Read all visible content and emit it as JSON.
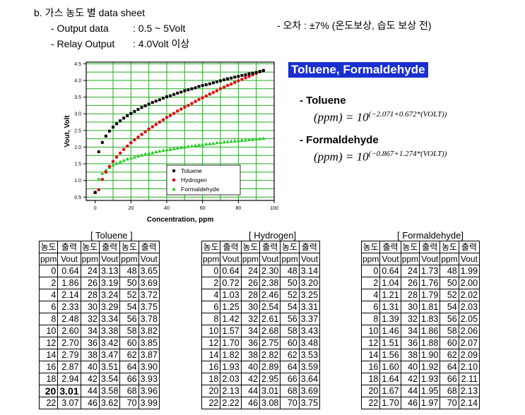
{
  "header": {
    "section_title": "b. 가스 농도 별 data sheet",
    "output_label": "- Output data",
    "output_value": ": 0.5 ~ 5Volt",
    "relay_label": "- Relay Output",
    "relay_value": ": 4.0Volt 이상",
    "error_note": "- 오차 : ±7% (온도보상, 습도 보상 전)"
  },
  "equations": {
    "title": "Toluene, Formaldehyde",
    "toluene_label": "- Toluene",
    "toluene_lhs": "(ppm) = 10",
    "toluene_exp": "(−2.071+0.672*(VOLT))",
    "formaldehyde_label": "- Formaldehyde",
    "formaldehyde_lhs": "(ppm) = 10",
    "formaldehyde_exp": "(−0.867+1.274*(VOLT))"
  },
  "chart_data": {
    "type": "scatter",
    "xlabel": "Concentration, ppm",
    "ylabel": "Vout, Volt",
    "xlim": [
      -5,
      100
    ],
    "ylim": [
      0.4,
      4.55
    ],
    "xticks": [
      0,
      20,
      40,
      60,
      80,
      100
    ],
    "yticks": [
      0.5,
      1.0,
      1.5,
      2.0,
      2.5,
      3.0,
      3.5,
      4.0,
      4.5
    ],
    "grid": true,
    "legend": "lower-right",
    "series": [
      {
        "name": "Toluene",
        "color": "#000000",
        "marker": "square",
        "x": [
          0,
          2,
          4,
          6,
          8,
          10,
          12,
          14,
          16,
          18,
          20,
          22,
          24,
          26,
          28,
          30,
          32,
          34,
          36,
          38,
          40,
          42,
          44,
          46,
          48,
          50,
          52,
          54,
          56,
          58,
          60,
          62,
          64,
          66,
          68,
          70,
          72,
          74,
          76,
          78,
          80,
          82,
          84,
          86,
          88,
          90,
          92,
          94
        ],
        "y": [
          0.64,
          1.86,
          2.14,
          2.33,
          2.48,
          2.6,
          2.7,
          2.79,
          2.87,
          2.94,
          3.01,
          3.07,
          3.13,
          3.19,
          3.24,
          3.29,
          3.34,
          3.38,
          3.42,
          3.47,
          3.51,
          3.54,
          3.58,
          3.62,
          3.65,
          3.69,
          3.72,
          3.75,
          3.78,
          3.82,
          3.85,
          3.87,
          3.9,
          3.93,
          3.96,
          3.99,
          4.02,
          4.05,
          4.07,
          4.1,
          4.12,
          4.15,
          4.17,
          4.2,
          4.22,
          4.24,
          4.27,
          4.29
        ]
      },
      {
        "name": "Hydrogen",
        "color": "#e01010",
        "marker": "circle",
        "x": [
          0,
          2,
          4,
          6,
          8,
          10,
          12,
          14,
          16,
          18,
          20,
          22,
          24,
          26,
          28,
          30,
          32,
          34,
          36,
          38,
          40,
          42,
          44,
          46,
          48,
          50,
          52,
          54,
          56,
          58,
          60,
          62,
          64,
          66,
          68,
          70,
          72,
          74,
          76,
          78,
          80,
          82,
          84,
          86,
          88,
          90,
          92,
          94
        ],
        "y": [
          0.64,
          0.72,
          1.03,
          1.25,
          1.42,
          1.57,
          1.7,
          1.82,
          1.93,
          2.03,
          2.13,
          2.22,
          2.3,
          2.38,
          2.46,
          2.54,
          2.61,
          2.68,
          2.75,
          2.82,
          2.89,
          2.95,
          3.01,
          3.08,
          3.14,
          3.2,
          3.25,
          3.31,
          3.37,
          3.43,
          3.48,
          3.53,
          3.59,
          3.64,
          3.69,
          3.75,
          3.8,
          3.85,
          3.89,
          3.94,
          3.99,
          4.03,
          4.08,
          4.12,
          4.17,
          4.21,
          4.26,
          4.3
        ]
      },
      {
        "name": "Formaldehyde",
        "color": "#22cc22",
        "marker": "triangle",
        "x": [
          0,
          2,
          4,
          6,
          8,
          10,
          12,
          14,
          16,
          18,
          20,
          22,
          24,
          26,
          28,
          30,
          32,
          34,
          36,
          38,
          40,
          42,
          44,
          46,
          48,
          50,
          52,
          54,
          56,
          58,
          60,
          62,
          64,
          66,
          68,
          70,
          72,
          74,
          76,
          78,
          80,
          82,
          84,
          86,
          88,
          90,
          92,
          94
        ],
        "y": [
          0.64,
          1.04,
          1.21,
          1.31,
          1.39,
          1.46,
          1.51,
          1.56,
          1.6,
          1.64,
          1.67,
          1.7,
          1.73,
          1.76,
          1.79,
          1.81,
          1.83,
          1.86,
          1.88,
          1.9,
          1.92,
          1.93,
          1.95,
          1.97,
          1.99,
          2.0,
          2.02,
          2.03,
          2.05,
          2.06,
          2.07,
          2.09,
          2.1,
          2.11,
          2.13,
          2.14,
          2.15,
          2.16,
          2.17,
          2.18,
          2.19,
          2.2,
          2.21,
          2.22,
          2.23,
          2.24,
          2.25,
          2.26
        ]
      }
    ]
  },
  "tables": [
    {
      "title": "[ Toluene ]",
      "header_top": [
        "농도",
        "출력",
        "농도",
        "출력",
        "농도",
        "출력"
      ],
      "header_bottom": [
        "ppm",
        "Vout",
        "ppm",
        "Vout",
        "ppm",
        "Vout"
      ],
      "rows": [
        [
          "0",
          "0.64",
          "24",
          "3.13",
          "48",
          "3.65"
        ],
        [
          "2",
          "1.86",
          "26",
          "3.19",
          "50",
          "3.69"
        ],
        [
          "4",
          "2.14",
          "28",
          "3.24",
          "52",
          "3.72"
        ],
        [
          "6",
          "2.33",
          "30",
          "3.29",
          "54",
          "3.75"
        ],
        [
          "8",
          "2.48",
          "32",
          "3.34",
          "56",
          "3.78"
        ],
        [
          "10",
          "2.60",
          "34",
          "3.38",
          "58",
          "3.82"
        ],
        [
          "12",
          "2.70",
          "36",
          "3.42",
          "60",
          "3.85"
        ],
        [
          "14",
          "2.79",
          "38",
          "3.47",
          "62",
          "3.87"
        ],
        [
          "16",
          "2.87",
          "40",
          "3.51",
          "64",
          "3.90"
        ],
        [
          "18",
          "2.94",
          "42",
          "3.54",
          "66",
          "3.93"
        ],
        [
          "20",
          "3.01",
          "44",
          "3.58",
          "68",
          "3.96"
        ],
        [
          "22",
          "3.07",
          "46",
          "3.62",
          "70",
          "3.99"
        ]
      ]
    },
    {
      "title": "[ Hydrogen]",
      "header_top": [
        "농도",
        "출력",
        "농도",
        "출력",
        "농도",
        "출력"
      ],
      "header_bottom": [
        "ppm",
        "Vout",
        "ppm",
        "Vout",
        "ppm",
        "Vout"
      ],
      "rows": [
        [
          "0",
          "0.64",
          "24",
          "2.30",
          "48",
          "3.14"
        ],
        [
          "2",
          "0.72",
          "26",
          "2.38",
          "50",
          "3.20"
        ],
        [
          "4",
          "1.03",
          "28",
          "2.46",
          "52",
          "3.25"
        ],
        [
          "6",
          "1.25",
          "30",
          "2.54",
          "54",
          "3.31"
        ],
        [
          "8",
          "1.42",
          "32",
          "2.61",
          "56",
          "3.37"
        ],
        [
          "10",
          "1.57",
          "34",
          "2.68",
          "58",
          "3.43"
        ],
        [
          "12",
          "1.70",
          "36",
          "2.75",
          "60",
          "3.48"
        ],
        [
          "14",
          "1.82",
          "38",
          "2.82",
          "62",
          "3.53"
        ],
        [
          "16",
          "1.93",
          "40",
          "2.89",
          "64",
          "3.59"
        ],
        [
          "18",
          "2.03",
          "42",
          "2.95",
          "66",
          "3.64"
        ],
        [
          "20",
          "2.13",
          "44",
          "3.01",
          "68",
          "3.69"
        ],
        [
          "22",
          "2.22",
          "46",
          "3.08",
          "70",
          "3.75"
        ]
      ]
    },
    {
      "title": "[ Formaldehyde]",
      "header_top": [
        "농도",
        "출력",
        "농도",
        "출력",
        "농도",
        "출력"
      ],
      "header_bottom": [
        "ppm",
        "Vout",
        "ppm",
        "Vout",
        "ppm",
        "Vout"
      ],
      "rows": [
        [
          "0",
          "0.64",
          "24",
          "1.73",
          "48",
          "1.99"
        ],
        [
          "2",
          "1.04",
          "26",
          "1.76",
          "50",
          "2.00"
        ],
        [
          "4",
          "1.21",
          "28",
          "1.79",
          "52",
          "2.02"
        ],
        [
          "6",
          "1.31",
          "30",
          "1.81",
          "54",
          "2.03"
        ],
        [
          "8",
          "1.39",
          "32",
          "1.83",
          "56",
          "2.05"
        ],
        [
          "10",
          "1.46",
          "34",
          "1.86",
          "58",
          "2.06"
        ],
        [
          "12",
          "1.51",
          "36",
          "1.88",
          "60",
          "2.07"
        ],
        [
          "14",
          "1.56",
          "38",
          "1.90",
          "62",
          "2.09"
        ],
        [
          "16",
          "1.60",
          "40",
          "1.92",
          "64",
          "2.10"
        ],
        [
          "18",
          "1.64",
          "42",
          "1.93",
          "66",
          "2.11"
        ],
        [
          "20",
          "1.67",
          "44",
          "1.95",
          "68",
          "2.13"
        ],
        [
          "22",
          "1.70",
          "46",
          "1.97",
          "70",
          "2.14"
        ]
      ]
    }
  ]
}
